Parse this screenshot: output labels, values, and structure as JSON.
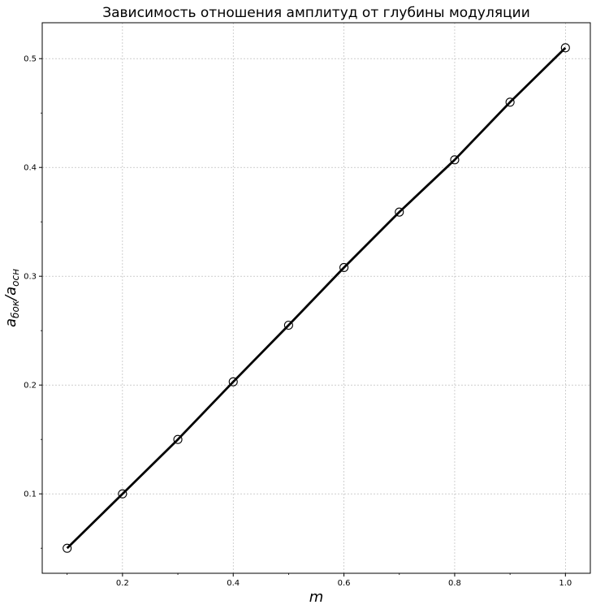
{
  "chart_data": {
    "type": "line",
    "title": "Зависимость отношения амплитуд от глубины модуляции",
    "xlabel": "m",
    "ylabel": {
      "base": "a",
      "numerator_sub": "бок",
      "separator": "/",
      "denominator_sub": "осн"
    },
    "xlim": [
      0.055,
      1.045
    ],
    "ylim": [
      0.027,
      0.533
    ],
    "x_ticks": [
      0.2,
      0.4,
      0.6,
      0.8,
      1.0
    ],
    "x_tick_labels": [
      "0.2",
      "0.4",
      "0.6",
      "0.8",
      "1.0"
    ],
    "y_ticks": [
      0.1,
      0.2,
      0.3,
      0.4,
      0.5
    ],
    "y_tick_labels": [
      "0.1",
      "0.2",
      "0.3",
      "0.4",
      "0.5"
    ],
    "grid": true,
    "series": [
      {
        "x": [
          0.1,
          0.2,
          0.3,
          0.4,
          0.5,
          0.6,
          0.7,
          0.8,
          0.9,
          1.0
        ],
        "y": [
          0.05,
          0.1,
          0.15,
          0.203,
          0.255,
          0.308,
          0.359,
          0.407,
          0.46,
          0.51
        ],
        "line_color": "#000000",
        "marker": "open-circle"
      }
    ]
  }
}
